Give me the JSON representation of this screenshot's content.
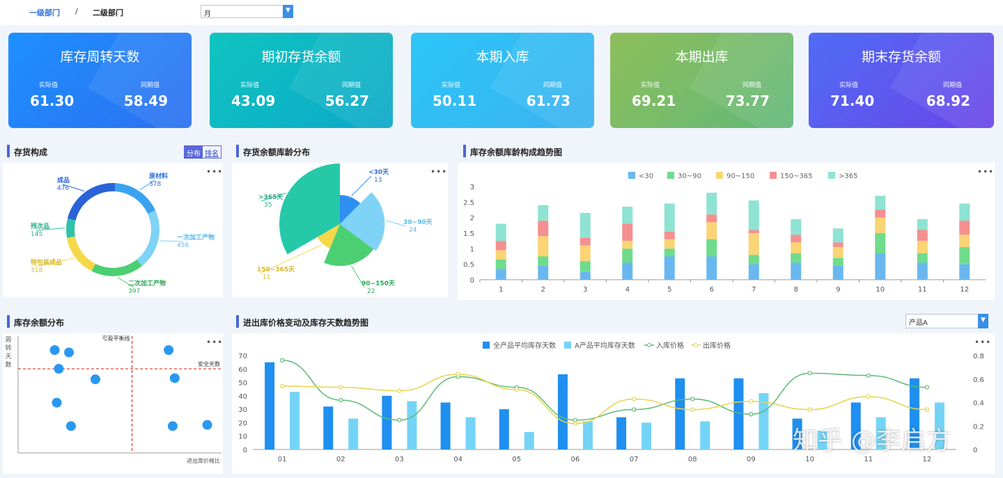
{
  "breadcrumb": {
    "level1": "一级部门",
    "separator": "/",
    "level2": "二级部门"
  },
  "period_select": {
    "value": "月"
  },
  "kpis": [
    {
      "title": "库存周转天数",
      "actual_label": "实际值",
      "actual": "61.30",
      "prior_label": "同期值",
      "prior": "58.49",
      "color_from": "#1e90ff",
      "color_to": "#2c6ff0"
    },
    {
      "title": "期初存货余额",
      "actual_label": "实际值",
      "actual": "43.09",
      "prior_label": "同期值",
      "prior": "56.27",
      "color_from": "#10c4c0",
      "color_to": "#0aa8c8"
    },
    {
      "title": "本期入库",
      "actual_label": "实际值",
      "actual": "50.11",
      "prior_label": "同期值",
      "prior": "61.73",
      "color_from": "#2cc6f7",
      "color_to": "#3bb2f0"
    },
    {
      "title": "本期出库",
      "actual_label": "实际值",
      "actual": "69.21",
      "prior_label": "同期值",
      "prior": "73.77",
      "color_from": "#8dbf5a",
      "color_to": "#62b87a"
    },
    {
      "title": "期末存货余额",
      "actual_label": "实际值",
      "actual": "71.40",
      "prior_label": "同期值",
      "prior": "68.92",
      "color_from": "#4f6cf6",
      "color_to": "#6b45e8"
    }
  ],
  "sections": {
    "composition": "存货构成",
    "aging": "存货余额库龄分布",
    "aging_trend": "库存余额库龄构成趋势图",
    "balance": "库存余额分布",
    "price_trend": "进出库价格变动及库存天数趋势图"
  },
  "toggle": {
    "on": "分布",
    "off": "排名"
  },
  "product_select": {
    "value": "产品A"
  },
  "more_label": "•••",
  "watermark": "知乎 @李启方",
  "chart_data": [
    {
      "id": "composition",
      "type": "pie",
      "variant": "donut",
      "labels": [
        "原材料",
        "一次加工产物",
        "二次加工产物",
        "特包装成品",
        "残次品",
        "成品"
      ],
      "values": [
        378,
        456,
        397,
        318,
        145,
        476
      ],
      "colors": [
        "#3aa3f0",
        "#7fd3f7",
        "#4ccf72",
        "#f5d84a",
        "#2fc2a8",
        "#2a62d8"
      ],
      "label_colors": [
        "#2f6fd6",
        "#5ab8e8",
        "#2aa655",
        "#d8b62a",
        "#2aa888",
        "#2a5fc8"
      ]
    },
    {
      "id": "aging",
      "type": "pie",
      "variant": "rose",
      "labels": [
        "<30天",
        "30~90天",
        "90~150天",
        "150~365天",
        ">365天"
      ],
      "values": [
        13,
        24,
        22,
        11,
        35
      ],
      "colors": [
        "#2f8ff0",
        "#7fd3f7",
        "#4ccf72",
        "#f5d84a",
        "#25c9a8"
      ],
      "label_colors": [
        "#2f6fd6",
        "#5ab8e8",
        "#2aa655",
        "#d8b62a",
        "#2aa888"
      ]
    },
    {
      "id": "aging_trend",
      "type": "bar",
      "stacked": true,
      "categories": [
        "1",
        "2",
        "3",
        "4",
        "5",
        "6",
        "7",
        "8",
        "9",
        "10",
        "11",
        "12"
      ],
      "series": [
        {
          "name": "<30",
          "color": "#6ab7f0",
          "values": [
            0.35,
            0.45,
            0.25,
            0.55,
            0.75,
            0.75,
            0.5,
            0.55,
            0.45,
            0.85,
            0.55,
            0.5
          ]
        },
        {
          "name": "30~90",
          "color": "#6fdc8c",
          "values": [
            0.3,
            0.3,
            0.35,
            0.45,
            0.25,
            0.55,
            0.3,
            0.3,
            0.25,
            0.65,
            0.3,
            0.55
          ]
        },
        {
          "name": "90~150",
          "color": "#fad475",
          "values": [
            0.3,
            0.65,
            0.5,
            0.25,
            0.3,
            0.55,
            0.7,
            0.35,
            0.35,
            0.5,
            0.4,
            0.4
          ]
        },
        {
          "name": "150~365",
          "color": "#f59090",
          "values": [
            0.3,
            0.5,
            0.25,
            0.55,
            0.25,
            0.25,
            0.1,
            0.25,
            0.15,
            0.25,
            0.35,
            0.45
          ]
        },
        {
          "name": ">365",
          "color": "#8ee3d3",
          "values": [
            0.55,
            0.5,
            0.8,
            0.55,
            0.9,
            0.7,
            0.95,
            0.5,
            0.45,
            0.45,
            0.35,
            0.55
          ]
        }
      ],
      "ylim": [
        0,
        3
      ],
      "yticks": [
        "0",
        "0.5",
        "1",
        "1.5",
        "2",
        "2.5",
        "3"
      ],
      "legend_position": "top"
    },
    {
      "id": "balance",
      "type": "scatter",
      "ylabel": "周转天数",
      "xlabel": "进出库价格比",
      "vline_label": "亏盈平衡线",
      "hline_label": "安全天数",
      "x": [
        0.18,
        0.25,
        0.2,
        0.38,
        0.19,
        0.26,
        0.74,
        0.77,
        0.76,
        0.93
      ],
      "y": [
        0.88,
        0.86,
        0.72,
        0.63,
        0.43,
        0.23,
        0.88,
        0.64,
        0.23,
        0.24
      ],
      "vline_x": 0.56,
      "hline_y": 0.72,
      "color": "#2a98f0"
    },
    {
      "id": "price_trend",
      "type": "bar",
      "categories": [
        "01",
        "02",
        "03",
        "04",
        "05",
        "06",
        "07",
        "08",
        "09",
        "10",
        "11",
        "12"
      ],
      "series": [
        {
          "name": "全产品平均库存天数",
          "kind": "bar",
          "color": "#1f8ff0",
          "values": [
            65,
            32,
            40,
            35,
            30,
            56,
            24,
            53,
            53,
            23,
            35,
            53
          ]
        },
        {
          "name": "A产品平均库存天数",
          "kind": "bar",
          "color": "#74d4f7",
          "values": [
            43,
            23,
            36,
            24,
            13,
            21,
            20,
            21,
            42,
            14,
            24,
            35
          ]
        },
        {
          "name": "入库价格",
          "kind": "line",
          "axis": "right",
          "color": "#5cba76",
          "values": [
            0.76,
            0.42,
            0.25,
            0.62,
            0.53,
            0.25,
            0.34,
            0.43,
            0.3,
            0.65,
            0.63,
            0.53
          ]
        },
        {
          "name": "出库价格",
          "kind": "line",
          "axis": "right",
          "color": "#e8d34a",
          "values": [
            0.54,
            0.53,
            0.5,
            0.64,
            0.51,
            0.22,
            0.43,
            0.34,
            0.41,
            0.34,
            0.45,
            0.34
          ]
        }
      ],
      "ylim": [
        0,
        70
      ],
      "yticks": [
        "0",
        "10",
        "20",
        "30",
        "40",
        "50",
        "60",
        "70"
      ],
      "y2lim": [
        0,
        0.8
      ],
      "y2ticks": [
        "0",
        "0.2",
        "0.4",
        "0.6",
        "0.8"
      ],
      "legend_position": "top"
    }
  ]
}
